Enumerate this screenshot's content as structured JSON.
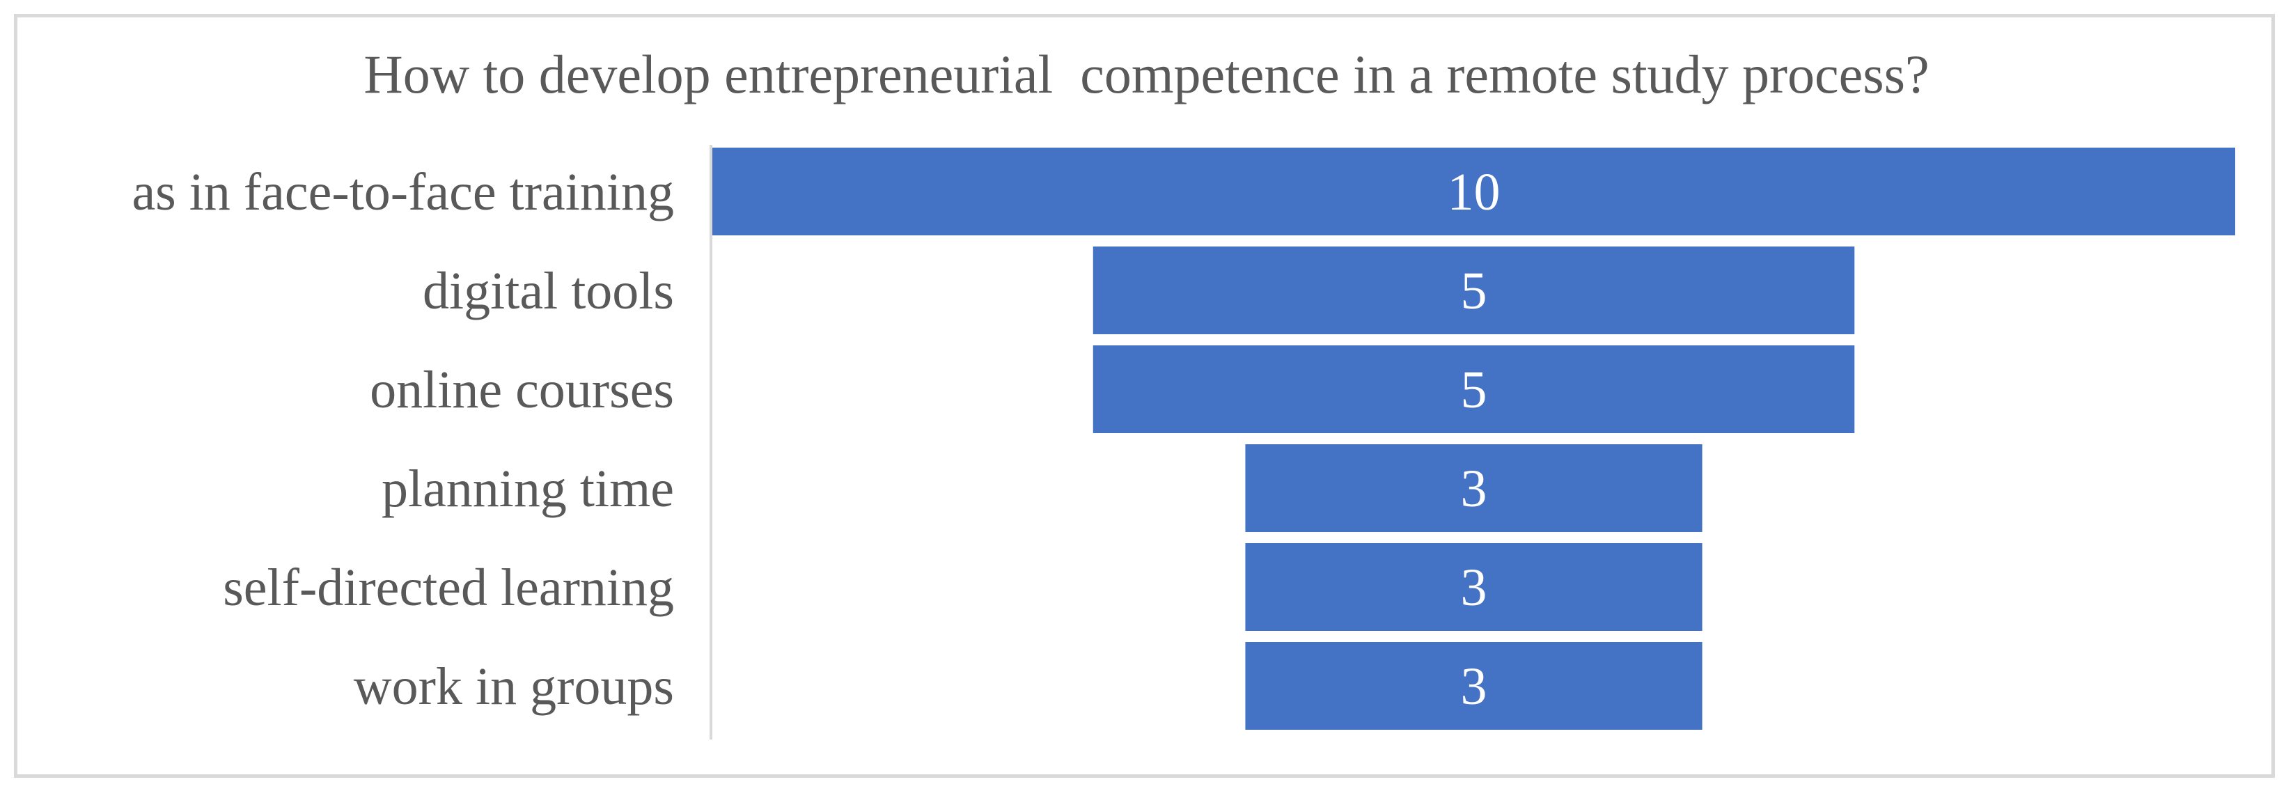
{
  "chart_data": {
    "type": "bar",
    "orientation": "horizontal",
    "style": "centered funnel",
    "title": "How to develop entrepreneurial  competence in a remote study process?",
    "categories": [
      "as in face-to-face training",
      "digital tools",
      "online courses",
      "planning time",
      "self-directed learning",
      "work in groups"
    ],
    "values": [
      10,
      5,
      5,
      3,
      3,
      3
    ],
    "data_labels": true,
    "grid": false,
    "legend": "none",
    "bar_color": "#4472c4"
  }
}
